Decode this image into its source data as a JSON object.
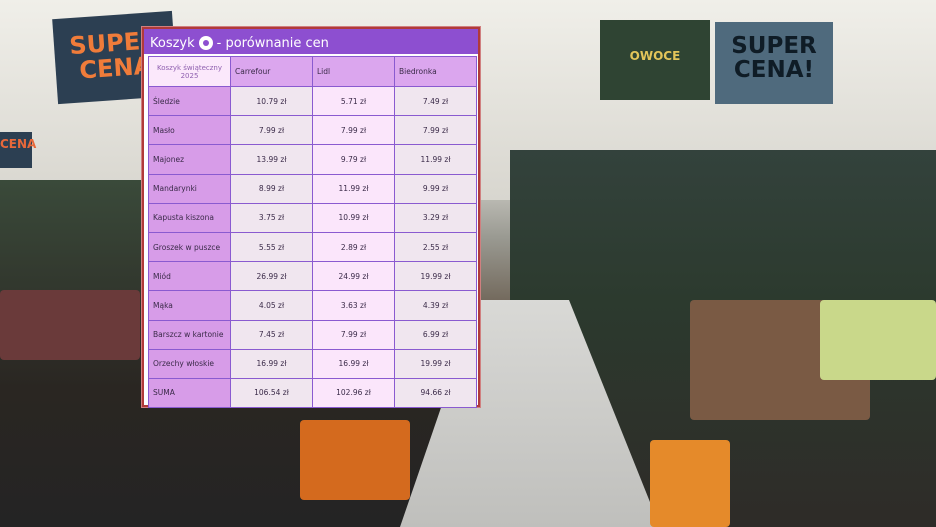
{
  "background": {
    "signs": [
      "SUPER CENA",
      "SUPER CENA!",
      "OWOCE",
      "CENA"
    ]
  },
  "panel": {
    "title": "Koszyk",
    "title_suffix": "- porównanie cen",
    "header": {
      "corner": "Koszyk świąteczny 2025",
      "stores": [
        "Carrefour",
        "Lidl",
        "Biedronka"
      ]
    },
    "rows": [
      {
        "item": "Śledzie",
        "prices": [
          "10.79 zł",
          "5.71 zł",
          "7.49 zł"
        ]
      },
      {
        "item": "Masło",
        "prices": [
          "7.99 zł",
          "7.99 zł",
          "7.99 zł"
        ]
      },
      {
        "item": "Majonez",
        "prices": [
          "13.99 zł",
          "9.79 zł",
          "11.99 zł"
        ]
      },
      {
        "item": "Mandarynki",
        "prices": [
          "8.99 zł",
          "11.99 zł",
          "9.99 zł"
        ]
      },
      {
        "item": "Kapusta kiszona",
        "prices": [
          "3.75 zł",
          "10.99 zł",
          "3.29 zł"
        ]
      },
      {
        "item": "Groszek w puszce",
        "prices": [
          "5.55 zł",
          "2.89 zł",
          "2.55 zł"
        ]
      },
      {
        "item": "Miód",
        "prices": [
          "26.99 zł",
          "24.99 zł",
          "19.99 zł"
        ]
      },
      {
        "item": "Mąka",
        "prices": [
          "4.05 zł",
          "3.63 zł",
          "4.39 zł"
        ]
      },
      {
        "item": "Barszcz w kartonie",
        "prices": [
          "7.45 zł",
          "7.99 zł",
          "6.99 zł"
        ]
      },
      {
        "item": "Orzechy włoskie",
        "prices": [
          "16.99 zł",
          "16.99 zł",
          "19.99 zł"
        ]
      },
      {
        "item": "SUMA",
        "prices": [
          "106.54 zł",
          "102.96 zł",
          "94.66 zł"
        ]
      }
    ]
  }
}
